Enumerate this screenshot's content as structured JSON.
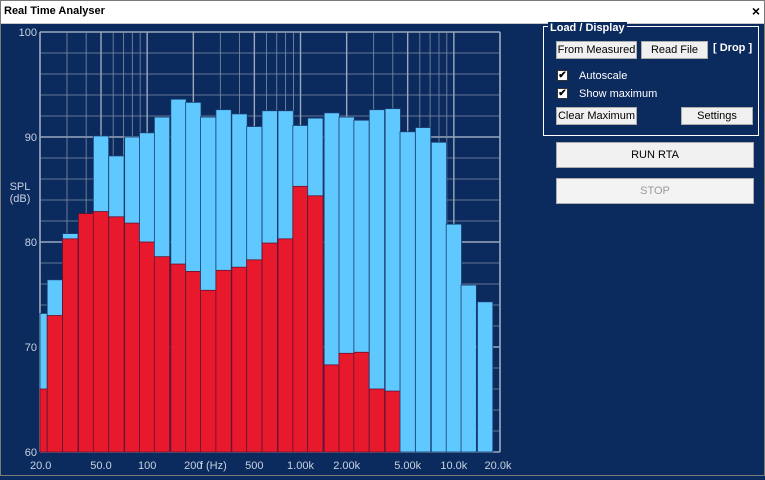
{
  "window": {
    "title": "Real Time Analyser",
    "close_glyph": "×"
  },
  "panel": {
    "group_title": "Load / Display",
    "from_measured": "From Measured",
    "read_file": "Read File",
    "drop": "[ Drop ]",
    "autoscale_label": "Autoscale",
    "autoscale_checked": true,
    "show_max_label": "Show maximum",
    "show_max_checked": true,
    "clear_max": "Clear Maximum",
    "settings": "Settings",
    "run": "RUN RTA",
    "stop": "STOP",
    "stop_enabled": false
  },
  "colors": {
    "background": "#0b2a5e",
    "current": "#e8192c",
    "maximum": "#5ec8ff",
    "grid": "#8090a8"
  },
  "chart_data": {
    "type": "bar",
    "ylabel": "SPL (dB)",
    "ylim": [
      60,
      100
    ],
    "x_scale": "log",
    "xlim_hz": [
      20,
      20000
    ],
    "y_ticks": [
      "100",
      "90",
      "80",
      "70",
      "60"
    ],
    "x_ticks": [
      "20.0",
      "50.0",
      "100",
      "200",
      "f (Hz)",
      "500",
      "1.00k",
      "2.00k",
      "5.00k",
      "10.0k",
      "20.0k"
    ],
    "categories_hz": [
      20,
      25,
      31.5,
      40,
      50,
      63,
      80,
      100,
      125,
      160,
      200,
      250,
      315,
      400,
      500,
      630,
      800,
      1000,
      1250,
      1600,
      2000,
      2500,
      3150,
      4000,
      5000,
      6300,
      8000,
      10000,
      12500,
      16000,
      20000
    ],
    "series": [
      {
        "values": [
          66,
          73,
          80.3,
          82.7,
          82.9,
          82.4,
          81.8,
          80,
          78.6,
          77.9,
          77.2,
          75.4,
          77.3,
          77.6,
          78.3,
          79.9,
          80.3,
          85.3,
          84.4,
          68.3,
          69.4,
          69.5,
          66,
          65.8,
          null,
          null,
          null,
          null,
          null,
          null,
          null
        ]
      },
      {
        "values": [
          73.2,
          76.4,
          80.8,
          82.7,
          90.1,
          88.2,
          90,
          90.4,
          91.9,
          93.6,
          93.3,
          91.9,
          92.6,
          92.2,
          91,
          92.5,
          92.5,
          91.1,
          91.8,
          92.3,
          91.9,
          91.6,
          92.6,
          92.7,
          90.5,
          90.9,
          89.5,
          81.7,
          75.9,
          74.3,
          null
        ]
      }
    ]
  }
}
